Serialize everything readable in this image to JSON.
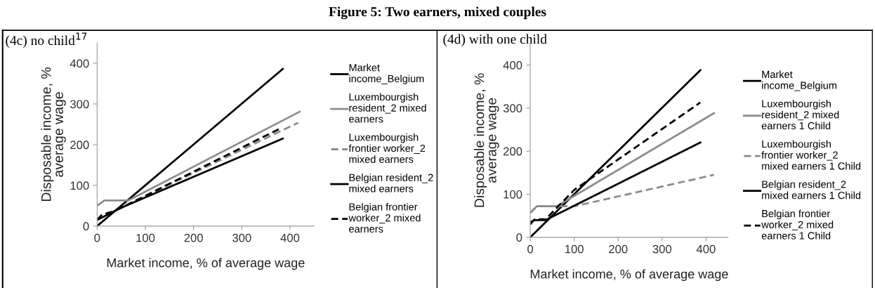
{
  "chart_data": [
    {
      "type": "line",
      "title": "(4c) no child$^{17}$",
      "annotations": [
        "Figure 5: Two earners, mixed couples"
      ],
      "xlabel": "Market income, % of average wage",
      "ylabel": "Disposable income, %\naverage wage",
      "xlim": [
        0,
        450
      ],
      "ylim": [
        0,
        450
      ],
      "xticks": [
        0,
        100,
        200,
        300,
        400
      ],
      "yticks": [
        0,
        100,
        200,
        300,
        400
      ],
      "grid": false,
      "legend": "right",
      "marker": "none",
      "series": [
        {
          "name": "Market\nincome_Belgium",
          "color": "#000000",
          "line_style": "solid",
          "x": [
            0,
            385
          ],
          "values": [
            0,
            386
          ]
        },
        {
          "name": "Luxembourgish\nresident_2 mixed\nearners",
          "color": "#8c8c8c",
          "line_style": "solid",
          "x": [
            0,
            15,
            65,
            420
          ],
          "values": [
            50,
            63,
            63,
            281
          ]
        },
        {
          "name": "Luxembourgish\nfrontier worker_2\nmixed earners",
          "color": "#8c8c8c",
          "line_style": "dashed",
          "x": [
            0,
            50,
            417
          ],
          "values": [
            15,
            45,
            254
          ]
        },
        {
          "name": "Belgian resident_2\nmixed earners",
          "color": "#000000",
          "line_style": "solid",
          "x": [
            0,
            50,
            385
          ],
          "values": [
            15,
            45,
            215
          ]
        },
        {
          "name": "Belgian frontier\nworker_2 mixed\nearners",
          "color": "#000000",
          "line_style": "dashed",
          "x": [
            0,
            10,
            30,
            50,
            380
          ],
          "values": [
            15,
            28,
            35,
            45,
            240
          ]
        }
      ]
    },
    {
      "type": "line",
      "title": "(4d) with one child",
      "xlabel": "Market income, % of average wage",
      "ylabel": "Disposable income, %\naverage wage",
      "xlim": [
        0,
        450
      ],
      "ylim": [
        0,
        450
      ],
      "xticks": [
        0,
        100,
        200,
        300,
        400
      ],
      "yticks": [
        0,
        100,
        200,
        300,
        400
      ],
      "grid": false,
      "legend": "right",
      "marker": "none",
      "series": [
        {
          "name": "Market\nincome_Belgium",
          "color": "#000000",
          "line_style": "solid",
          "x": [
            0,
            387
          ],
          "values": [
            0,
            388
          ]
        },
        {
          "name": "Luxembourgish\nresident_2 mixed\nearners 1 Child",
          "color": "#8c8c8c",
          "line_style": "solid",
          "x": [
            0,
            15,
            60,
            418
          ],
          "values": [
            57,
            72,
            72,
            288
          ]
        },
        {
          "name": "Luxembourgish\nfrontier worker_2\nmixed earners 1 Child",
          "color": "#8c8c8c",
          "line_style": "dashed",
          "x": [
            0,
            15,
            100,
            418
          ],
          "values": [
            57,
            72,
            72,
            145
          ]
        },
        {
          "name": "Belgian resident_2\nmixed earners 1 Child",
          "color": "#000000",
          "line_style": "solid",
          "x": [
            0,
            10,
            35,
            387
          ],
          "values": [
            35,
            40,
            40,
            220
          ]
        },
        {
          "name": "Belgian frontier\nworker_2 mixed\nearners 1 Child",
          "color": "#000000",
          "line_style": "dashed",
          "x": [
            0,
            10,
            35,
            100,
            387
          ],
          "values": [
            30,
            42,
            42,
            110,
            313
          ]
        }
      ]
    }
  ]
}
